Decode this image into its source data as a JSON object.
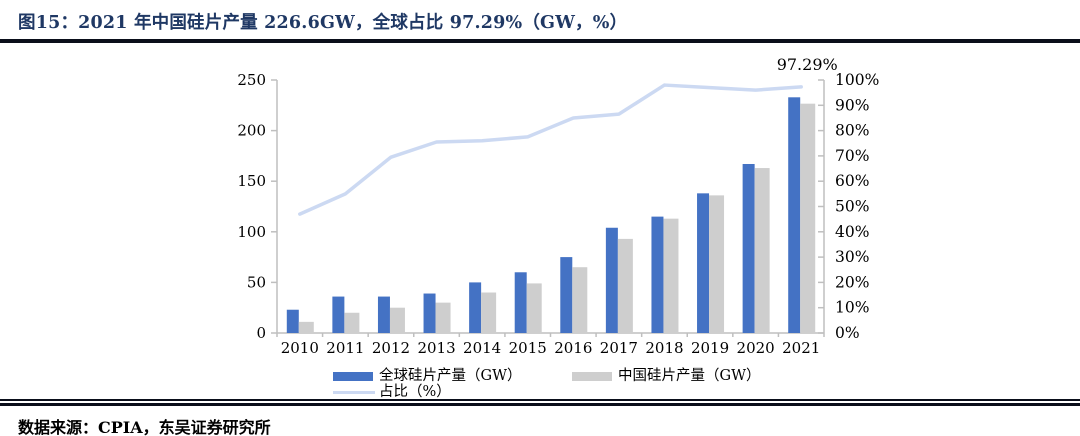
{
  "header": {
    "figure_title": "图15：2021 年中国硅片产量 226.6GW，全球占比 97.29%（GW，%）"
  },
  "footer": {
    "source": "数据来源：CPIA，东吴证券研究所"
  },
  "palette": {
    "bar_global": "#4472c4",
    "bar_china": "#cecece",
    "line_share": "#ccd9f2",
    "title_navy": "#1f3864",
    "rule_dark": "#0a0e1a",
    "axis_gray": "#bfbfbf",
    "text_black": "#000000"
  },
  "chart_data": {
    "type": "bar",
    "subtype": "bar+line combo, dual axis",
    "categories": [
      "2010",
      "2011",
      "2012",
      "2013",
      "2014",
      "2015",
      "2016",
      "2017",
      "2018",
      "2019",
      "2020",
      "2021"
    ],
    "series": [
      {
        "name": "全球硅片产量（GW）",
        "type": "bar",
        "axis": "left",
        "color": "#4472c4",
        "values": [
          23,
          36,
          36,
          39,
          50,
          60,
          75,
          104,
          115,
          138,
          167,
          232.9
        ]
      },
      {
        "name": "中国硅片产量（GW）",
        "type": "bar",
        "axis": "left",
        "color": "#cecece",
        "values": [
          11,
          20,
          25,
          30,
          40,
          49,
          65,
          93,
          113,
          136,
          163,
          226.6
        ]
      },
      {
        "name": "占比（%）",
        "type": "line",
        "axis": "right",
        "color": "#ccd9f2",
        "values": [
          47,
          55,
          69.5,
          75.5,
          76,
          77.5,
          85,
          86.5,
          98,
          97,
          96,
          97.29
        ]
      }
    ],
    "left_axis": {
      "min": 0,
      "max": 250,
      "step": 50,
      "ticks": [
        "0",
        "50",
        "100",
        "150",
        "200",
        "250"
      ]
    },
    "right_axis": {
      "min": 0,
      "max": 100,
      "step": 10,
      "suffix": "%",
      "ticks": [
        "0%",
        "10%",
        "20%",
        "30%",
        "40%",
        "50%",
        "60%",
        "70%",
        "80%",
        "90%",
        "100%"
      ]
    },
    "annotation": {
      "text": "97.29%",
      "x_index": 11,
      "value": 97.29
    },
    "grid": false,
    "legend_position": "bottom"
  }
}
